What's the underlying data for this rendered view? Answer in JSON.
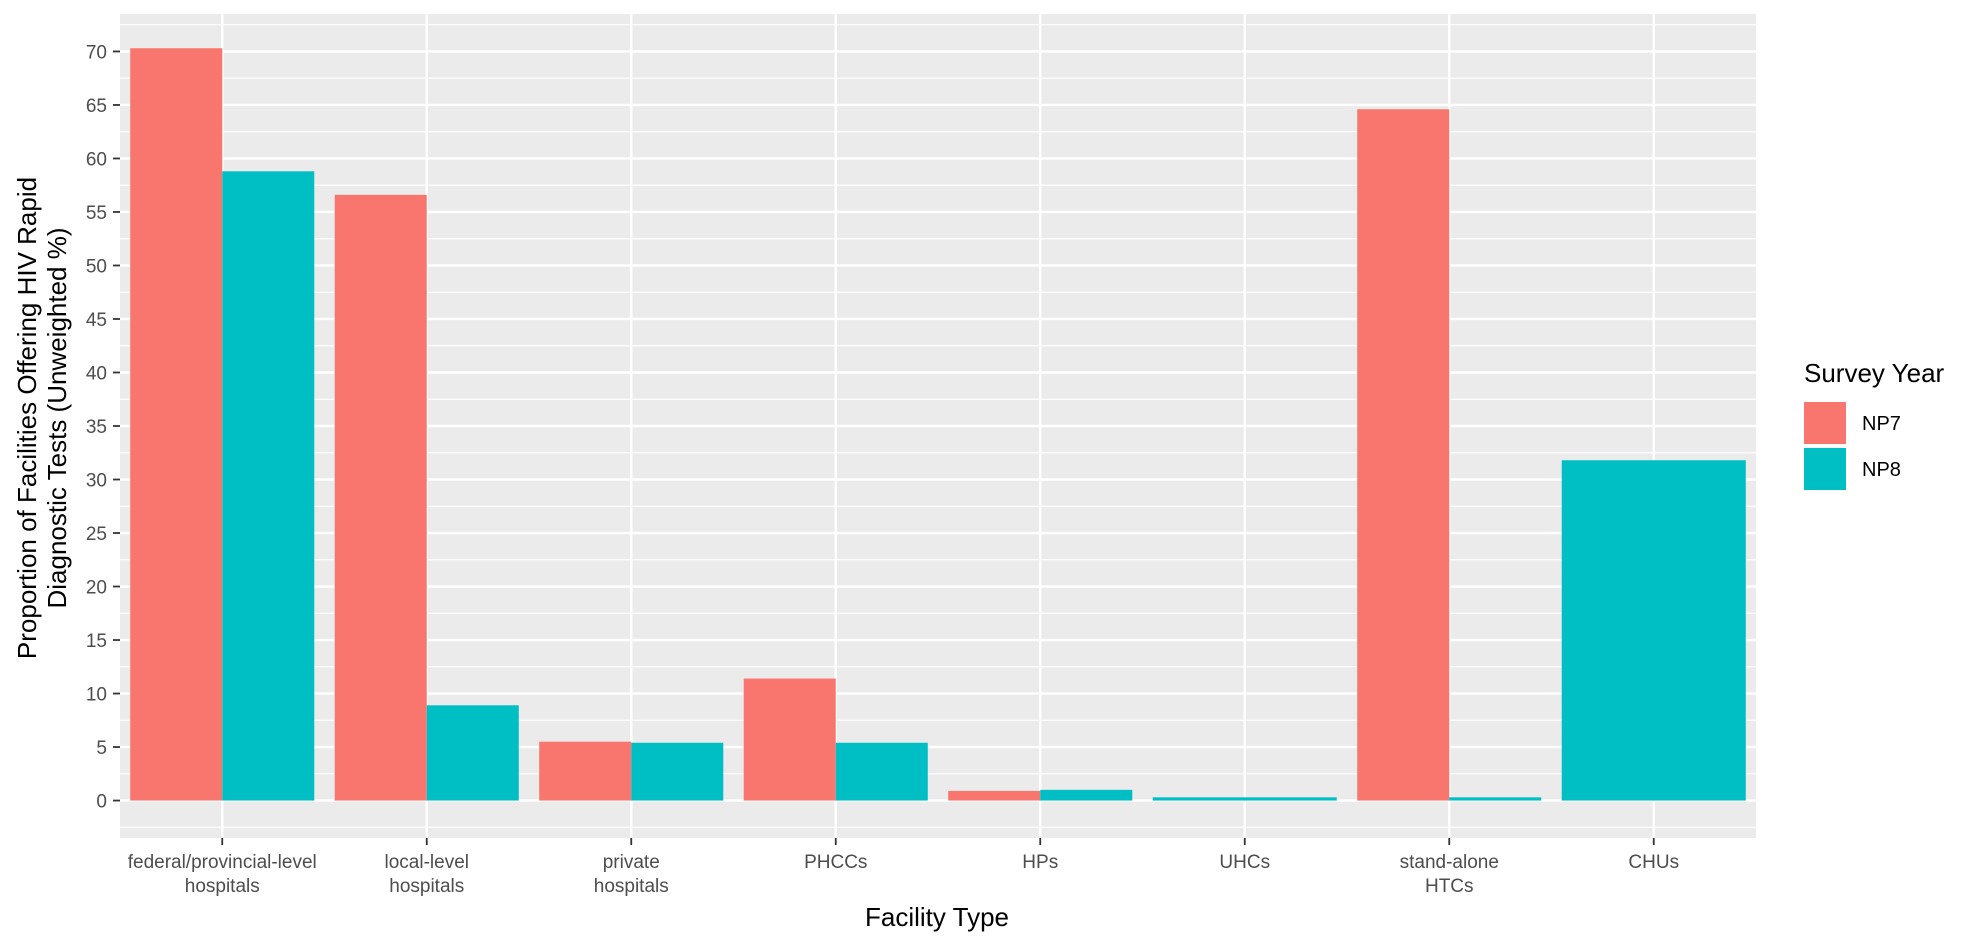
{
  "chart_data": {
    "type": "bar",
    "xlabel": "Facility Type",
    "ylabel_lines": [
      "Proportion of Facilities Offering HIV Rapid",
      "Diagnostic Tests (Unweighted %)"
    ],
    "categories": [
      [
        "federal/provincial-level",
        "hospitals"
      ],
      [
        "local-level",
        "hospitals"
      ],
      [
        "private",
        "hospitals"
      ],
      [
        "PHCCs"
      ],
      [
        "HPs"
      ],
      [
        "UHCs"
      ],
      [
        "stand-alone",
        "HTCs"
      ],
      [
        "CHUs"
      ]
    ],
    "series": [
      {
        "name": "NP7",
        "color": "#F8766D",
        "values": [
          70.3,
          56.6,
          5.5,
          11.4,
          0.9,
          null,
          64.6,
          null
        ]
      },
      {
        "name": "NP8",
        "color": "#00BFC4",
        "values": [
          58.8,
          8.9,
          5.4,
          5.4,
          1.0,
          0.3,
          0.3,
          31.8
        ]
      }
    ],
    "single_bar_categories": [
      5,
      7
    ],
    "ylim": [
      -3.5,
      73.5
    ],
    "y_ticks": [
      0,
      5,
      10,
      15,
      20,
      25,
      30,
      35,
      40,
      45,
      50,
      55,
      60,
      65,
      70
    ],
    "grid": true,
    "panel_background": "#EBEBEB",
    "legend": {
      "title": "Survey Year",
      "position": "right"
    }
  }
}
